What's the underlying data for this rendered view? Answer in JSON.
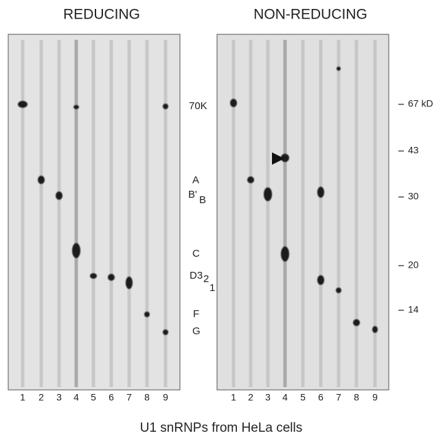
{
  "panels": [
    {
      "title": "REDUCING",
      "lanes": [
        "1",
        "2",
        "3",
        "4",
        "5",
        "6",
        "7",
        "8",
        "9"
      ]
    },
    {
      "title": "NON-REDUCING",
      "lanes": [
        "1",
        "2",
        "3",
        "4",
        "5",
        "6",
        "7",
        "8",
        "9"
      ]
    }
  ],
  "band_labels": [
    "70K",
    "A",
    "B'",
    "B",
    "C",
    "D3",
    "2",
    "1",
    "F",
    "G"
  ],
  "markers": [
    "67 kD",
    "43",
    "30",
    "20",
    "14"
  ],
  "caption": "U1 snRNPs from HeLa cells"
}
